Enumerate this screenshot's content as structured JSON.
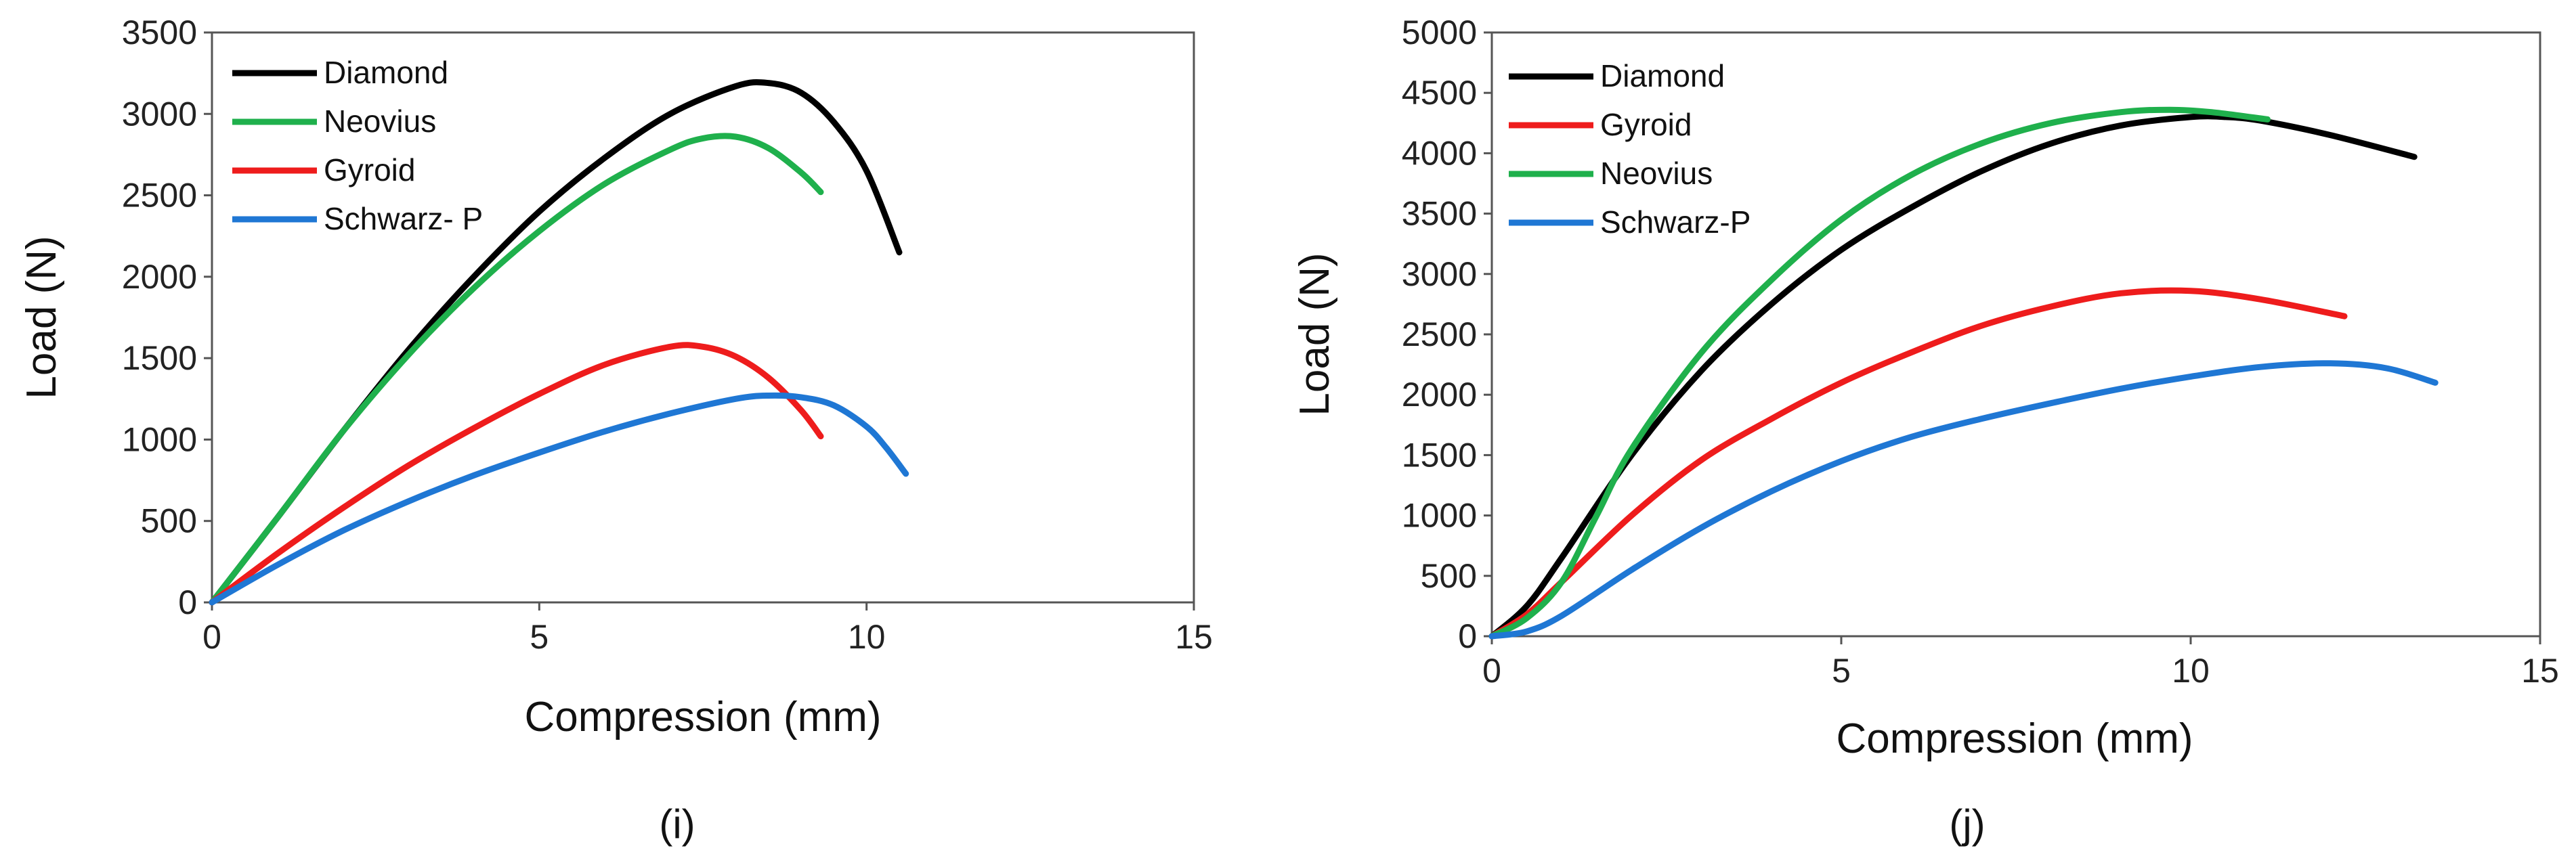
{
  "chart_data": [
    {
      "type": "line",
      "panel_label": "(i)",
      "xlabel": "Compression (mm)",
      "ylabel": "Load (N)",
      "xlim": [
        0,
        15
      ],
      "ylim": [
        0,
        3500
      ],
      "xticks": [
        0,
        5,
        10,
        15
      ],
      "yticks": [
        0,
        500,
        1000,
        1500,
        2000,
        2500,
        3000,
        3500
      ],
      "grid": false,
      "legend_position": "top-left",
      "series": [
        {
          "name": "Diamond",
          "color": "#000000",
          "x": [
            0,
            1,
            2,
            3,
            4,
            5,
            6,
            7,
            8,
            8.5,
            9,
            9.5,
            10,
            10.5
          ],
          "y": [
            0,
            520,
            1050,
            1550,
            2000,
            2400,
            2730,
            3000,
            3170,
            3190,
            3130,
            2950,
            2650,
            2150
          ]
        },
        {
          "name": "Neovius",
          "color": "#1fb04c",
          "x": [
            0,
            1,
            2,
            3,
            4,
            5,
            6,
            7,
            7.5,
            8,
            8.5,
            9,
            9.3
          ],
          "y": [
            0,
            520,
            1050,
            1520,
            1930,
            2280,
            2570,
            2780,
            2850,
            2860,
            2790,
            2640,
            2520
          ]
        },
        {
          "name": "Gyroid",
          "color": "#ee1c1c",
          "x": [
            0,
            1,
            2,
            3,
            4,
            5,
            6,
            7,
            7.5,
            8,
            8.5,
            9,
            9.3
          ],
          "y": [
            0,
            300,
            580,
            840,
            1070,
            1280,
            1460,
            1570,
            1570,
            1510,
            1380,
            1180,
            1020
          ]
        },
        {
          "name": "Schwarz- P",
          "color": "#1f77d4",
          "x": [
            0,
            1,
            2,
            3,
            4,
            5,
            6,
            7,
            8,
            8.5,
            9,
            9.5,
            10,
            10.3,
            10.6
          ],
          "y": [
            0,
            230,
            440,
            620,
            780,
            920,
            1050,
            1160,
            1250,
            1270,
            1260,
            1210,
            1080,
            950,
            790
          ]
        }
      ]
    },
    {
      "type": "line",
      "panel_label": "(j)",
      "xlabel": "Compression (mm)",
      "ylabel": "Load (N)",
      "xlim": [
        0,
        15
      ],
      "ylim": [
        0,
        5000
      ],
      "xticks": [
        0,
        5,
        10,
        15
      ],
      "yticks": [
        0,
        500,
        1000,
        1500,
        2000,
        2500,
        3000,
        3500,
        4000,
        4500,
        5000
      ],
      "grid": false,
      "legend_position": "top-left",
      "series": [
        {
          "name": "Diamond",
          "color": "#000000",
          "x": [
            0,
            0.5,
            1,
            2,
            3,
            4,
            5,
            6,
            7,
            8,
            9,
            10,
            10.5,
            11,
            12,
            13.2
          ],
          "y": [
            0,
            250,
            650,
            1500,
            2200,
            2750,
            3200,
            3550,
            3850,
            4080,
            4230,
            4300,
            4300,
            4270,
            4150,
            3970
          ]
        },
        {
          "name": "Gyroid",
          "color": "#ee1c1c",
          "x": [
            0,
            0.5,
            1,
            2,
            3,
            4,
            5,
            6,
            7,
            8,
            9,
            10,
            11,
            12.2
          ],
          "y": [
            0,
            180,
            450,
            1000,
            1460,
            1800,
            2100,
            2350,
            2570,
            2730,
            2840,
            2860,
            2790,
            2650
          ]
        },
        {
          "name": "Neovius",
          "color": "#1fb04c",
          "x": [
            0,
            0.5,
            1,
            1.5,
            2,
            3,
            4,
            5,
            6,
            7,
            8,
            9,
            9.7,
            10.3,
            11.1
          ],
          "y": [
            0,
            150,
            450,
            1000,
            1550,
            2350,
            2950,
            3450,
            3820,
            4080,
            4250,
            4340,
            4360,
            4340,
            4280
          ]
        },
        {
          "name": "Schwarz-P",
          "color": "#1f77d4",
          "x": [
            0,
            0.5,
            1,
            2,
            3,
            4,
            5,
            6,
            7,
            8,
            9,
            10,
            11,
            12,
            12.8,
            13.5
          ],
          "y": [
            0,
            40,
            170,
            550,
            900,
            1200,
            1450,
            1650,
            1800,
            1930,
            2050,
            2150,
            2230,
            2260,
            2220,
            2100
          ]
        }
      ]
    }
  ]
}
